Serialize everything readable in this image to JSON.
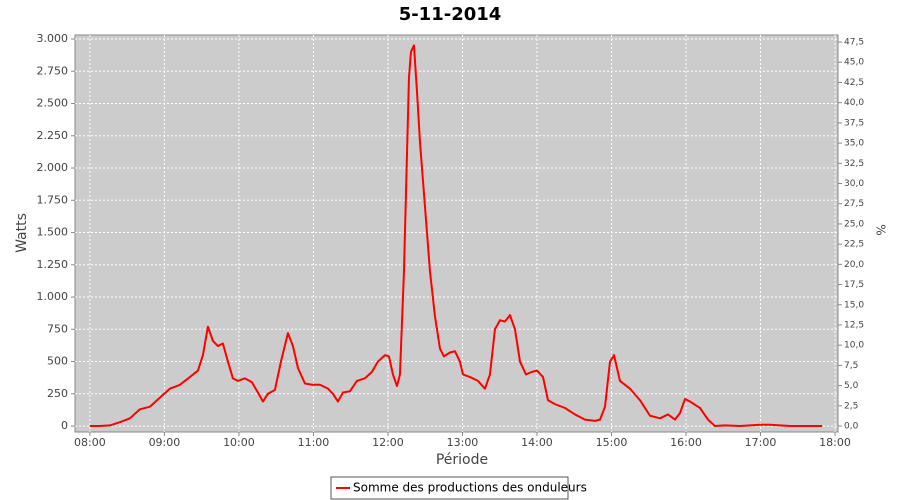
{
  "chart_data": {
    "type": "line",
    "title": "5-11-2014",
    "x_label": "Période",
    "y_label": "Watts",
    "y2_label": "%",
    "x": [
      8.0,
      8.134,
      8.268,
      8.403,
      8.537,
      8.671,
      8.805,
      8.94,
      9.074,
      9.208,
      9.342,
      9.45,
      9.517,
      9.584,
      9.651,
      9.718,
      9.785,
      9.852,
      9.919,
      9.987,
      10.081,
      10.174,
      10.255,
      10.322,
      10.389,
      10.483,
      10.564,
      10.658,
      10.725,
      10.792,
      10.886,
      10.98,
      11.087,
      11.195,
      11.262,
      11.329,
      11.396,
      11.49,
      11.584,
      11.691,
      11.785,
      11.866,
      11.96,
      12.013,
      12.067,
      12.121,
      12.161,
      12.215,
      12.282,
      12.309,
      12.349,
      12.389,
      12.43,
      12.497,
      12.564,
      12.631,
      12.698,
      12.752,
      12.832,
      12.899,
      12.966,
      13.007,
      13.101,
      13.208,
      13.302,
      13.369,
      13.436,
      13.503,
      13.57,
      13.638,
      13.705,
      13.772,
      13.852,
      13.933,
      14.0,
      14.081,
      14.148,
      14.242,
      14.376,
      14.51,
      14.644,
      14.779,
      14.846,
      14.913,
      14.98,
      15.034,
      15.114,
      15.248,
      15.383,
      15.517,
      15.651,
      15.758,
      15.852,
      15.919,
      15.987,
      16.054,
      16.188,
      16.295,
      16.389,
      16.523,
      16.725,
      16.993,
      17.128,
      17.396,
      17.826
    ],
    "series": [
      {
        "name": "Somme des productions des onduleurs",
        "color": "#ff0000",
        "values": [
          0,
          0,
          5,
          30,
          60,
          130,
          150,
          220,
          290,
          320,
          380,
          430,
          550,
          770,
          660,
          620,
          640,
          500,
          370,
          350,
          370,
          340,
          260,
          190,
          250,
          280,
          500,
          720,
          620,
          450,
          330,
          320,
          320,
          290,
          250,
          190,
          260,
          270,
          350,
          370,
          420,
          500,
          550,
          540,
          400,
          310,
          400,
          1200,
          2700,
          2900,
          2950,
          2600,
          2200,
          1700,
          1200,
          850,
          600,
          540,
          570,
          580,
          500,
          400,
          380,
          350,
          290,
          400,
          750,
          820,
          810,
          860,
          750,
          500,
          400,
          420,
          430,
          380,
          200,
          170,
          140,
          90,
          50,
          40,
          50,
          150,
          500,
          550,
          350,
          290,
          200,
          80,
          60,
          90,
          50,
          100,
          210,
          190,
          140,
          50,
          0,
          5,
          0,
          10,
          10,
          0,
          0
        ]
      }
    ],
    "xlim": [
      7.8,
      18.04
    ],
    "xticks": [
      {
        "value": 8,
        "label": "08:00"
      },
      {
        "value": 9,
        "label": "09:00"
      },
      {
        "value": 10,
        "label": "10:00"
      },
      {
        "value": 11,
        "label": "11:00"
      },
      {
        "value": 12,
        "label": "12:00"
      },
      {
        "value": 13,
        "label": "13:00"
      },
      {
        "value": 14,
        "label": "14:00"
      },
      {
        "value": 15,
        "label": "15:00"
      },
      {
        "value": 16,
        "label": "16:00"
      },
      {
        "value": 17,
        "label": "17:00"
      },
      {
        "value": 18,
        "label": "18:00"
      }
    ],
    "ylim": [
      -46,
      3031
    ],
    "yticks": [
      0,
      250,
      500,
      750,
      {
        "value": 1000,
        "label": "1.000"
      },
      {
        "value": 1250,
        "label": "1.250"
      },
      {
        "value": 1500,
        "label": "1.500"
      },
      {
        "value": 1750,
        "label": "1.750"
      },
      {
        "value": 2000,
        "label": "2.000"
      },
      {
        "value": 2250,
        "label": "2.250"
      },
      {
        "value": 2500,
        "label": "2.500"
      },
      {
        "value": 2750,
        "label": "2.750"
      },
      {
        "value": 3000,
        "label": "3.000"
      }
    ],
    "y2lim": [
      -0.74,
      48.37
    ],
    "y2ticks": [
      {
        "value": 0,
        "label": "0,0"
      },
      {
        "value": 2.5,
        "label": "2,5"
      },
      {
        "value": 5,
        "label": "5,0"
      },
      {
        "value": 7.5,
        "label": "7,5"
      },
      {
        "value": 10,
        "label": "10,0"
      },
      {
        "value": 12.5,
        "label": "12,5"
      },
      {
        "value": 15,
        "label": "15,0"
      },
      {
        "value": 17.5,
        "label": "17,5"
      },
      {
        "value": 20,
        "label": "20,0"
      },
      {
        "value": 22.5,
        "label": "22,5"
      },
      {
        "value": 25,
        "label": "25,0"
      },
      {
        "value": 27.5,
        "label": "27,5"
      },
      {
        "value": 30,
        "label": "30,0"
      },
      {
        "value": 32.5,
        "label": "32,5"
      },
      {
        "value": 35,
        "label": "35,0"
      },
      {
        "value": 37.5,
        "label": "37,5"
      },
      {
        "value": 40,
        "label": "40,0"
      },
      {
        "value": 42.5,
        "label": "42,5"
      },
      {
        "value": 45,
        "label": "45,0"
      },
      {
        "value": 47.5,
        "label": "47,5"
      }
    ],
    "grid": true,
    "legend": "bottom"
  }
}
